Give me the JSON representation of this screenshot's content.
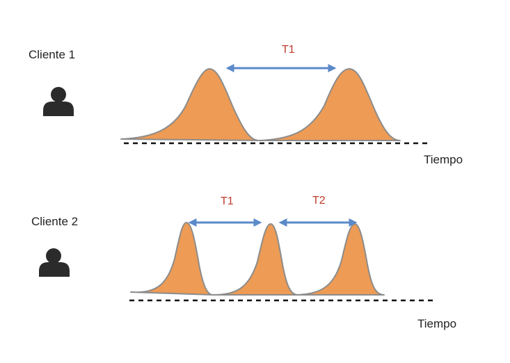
{
  "colors": {
    "peak_fill": "#ED9B55",
    "peak_stroke": "#8C8C8C",
    "arrow": "#5B8AC9",
    "interval_label": "#C0392B",
    "icon": "#2B2B2B",
    "baseline": "#111111"
  },
  "icons": {
    "client_1": "person-icon",
    "client_2": "person-icon"
  },
  "panels": [
    {
      "client_label": "Cliente 1",
      "axis_label": "Tiempo",
      "peak_count": 2,
      "intervals": [
        {
          "label": "T1",
          "from_peak": 1,
          "to_peak": 2
        }
      ]
    },
    {
      "client_label": "Cliente 2",
      "axis_label": "Tiempo",
      "peak_count": 3,
      "intervals": [
        {
          "label": "T1",
          "from_peak": 1,
          "to_peak": 2
        },
        {
          "label": "T2",
          "from_peak": 2,
          "to_peak": 3
        }
      ]
    }
  ]
}
